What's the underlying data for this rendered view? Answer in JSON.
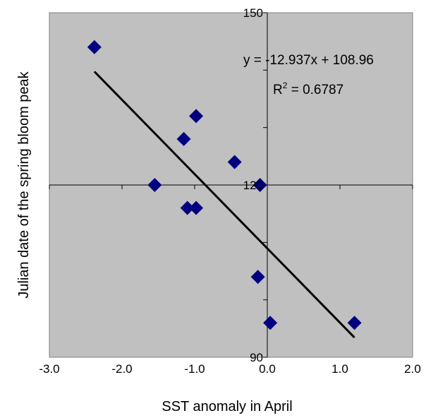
{
  "chart_data": {
    "type": "scatter",
    "xlabel": "SST anomaly in April",
    "ylabel": "Julian date of the spring bloom peak",
    "xlim": [
      -3.0,
      2.0
    ],
    "ylim": [
      90,
      150
    ],
    "x_ticks": [
      -3.0,
      -2.0,
      -1.0,
      0.0,
      1.0,
      2.0
    ],
    "x_tick_labels": [
      "-3.0",
      "-2.0",
      "-1.0",
      "0.0",
      "1.0",
      "2.0"
    ],
    "y_ticks": [
      90,
      120,
      150
    ],
    "y_tick_labels": [
      "90",
      "120",
      "150"
    ],
    "y_minor_ticks": [
      100,
      110,
      130,
      140
    ],
    "plot_background": "#c0c0c0",
    "marker_color": "#000080",
    "marker_shape": "diamond",
    "trendline_color": "#000000",
    "points": [
      {
        "x": -2.38,
        "y": 144
      },
      {
        "x": -0.98,
        "y": 132
      },
      {
        "x": -1.15,
        "y": 128
      },
      {
        "x": -0.45,
        "y": 124
      },
      {
        "x": -1.55,
        "y": 120
      },
      {
        "x": -0.1,
        "y": 120
      },
      {
        "x": -1.1,
        "y": 116
      },
      {
        "x": -0.98,
        "y": 116
      },
      {
        "x": -0.13,
        "y": 104
      },
      {
        "x": 0.04,
        "y": 96
      },
      {
        "x": 1.2,
        "y": 96
      }
    ],
    "trendline": {
      "slope": -12.937,
      "intercept": 108.96,
      "x_range": [
        -2.38,
        1.2
      ],
      "equation_text": "y = -12.937x + 108.96",
      "r2_prefix": "R",
      "r2_sup": "2",
      "r2_suffix": " = 0.6787"
    }
  }
}
